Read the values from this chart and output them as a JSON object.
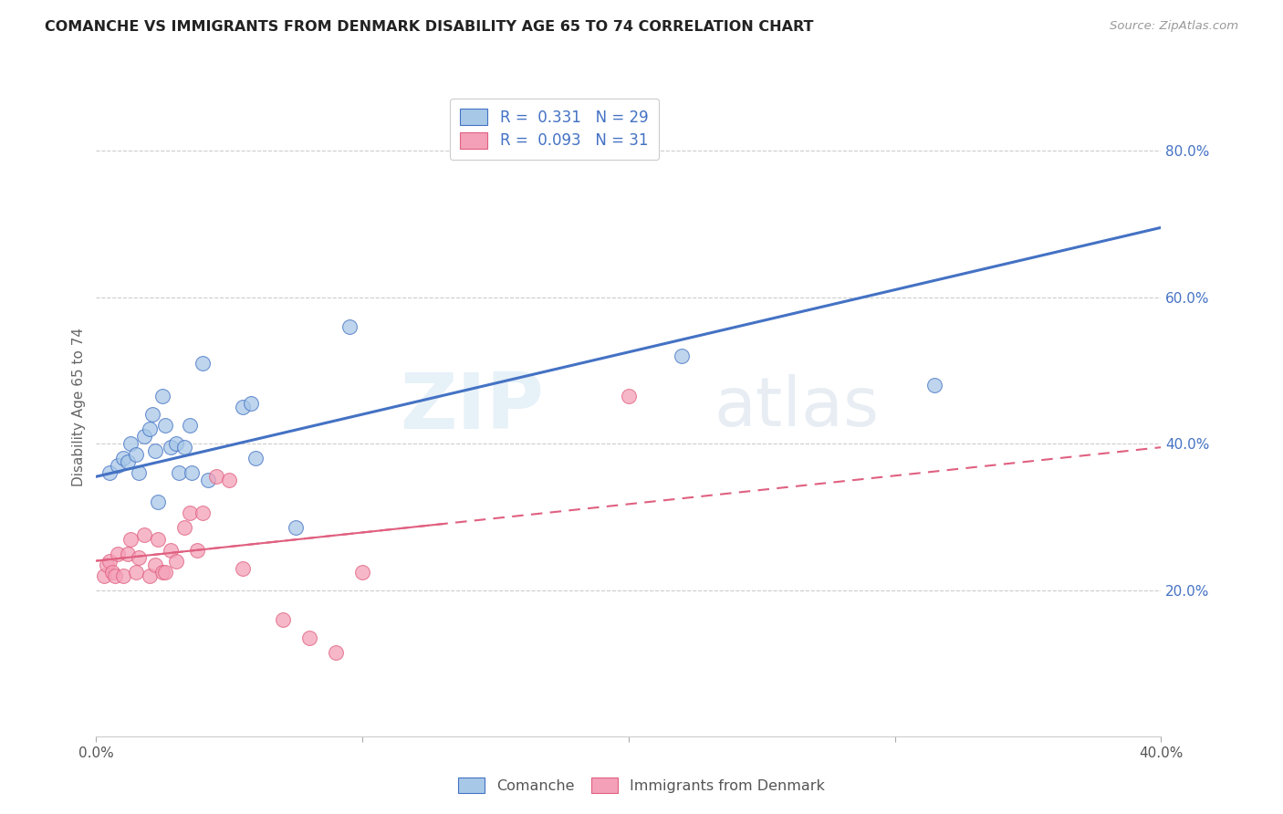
{
  "title": "COMANCHE VS IMMIGRANTS FROM DENMARK DISABILITY AGE 65 TO 74 CORRELATION CHART",
  "source": "Source: ZipAtlas.com",
  "ylabel_label": "Disability Age 65 to 74",
  "legend_label1": "Comanche",
  "legend_label2": "Immigrants from Denmark",
  "R1": 0.331,
  "N1": 29,
  "R2": 0.093,
  "N2": 31,
  "xlim": [
    0.0,
    0.4
  ],
  "ylim": [
    0.0,
    0.9
  ],
  "yticks": [
    0.2,
    0.4,
    0.6,
    0.8
  ],
  "ytick_labels": [
    "20.0%",
    "40.0%",
    "60.0%",
    "80.0%"
  ],
  "color_blue": "#a8c8e8",
  "color_pink": "#f4a0b8",
  "line_blue": "#4472c4",
  "line_pink": "#e06080",
  "watermark_zip": "ZIP",
  "watermark_atlas": "atlas",
  "comanche_x": [
    0.005,
    0.008,
    0.01,
    0.012,
    0.013,
    0.015,
    0.016,
    0.018,
    0.02,
    0.021,
    0.022,
    0.023,
    0.025,
    0.026,
    0.028,
    0.03,
    0.031,
    0.033,
    0.035,
    0.036,
    0.04,
    0.042,
    0.055,
    0.058,
    0.06,
    0.075,
    0.095,
    0.22,
    0.315
  ],
  "comanche_y": [
    0.36,
    0.37,
    0.38,
    0.375,
    0.4,
    0.385,
    0.36,
    0.41,
    0.42,
    0.44,
    0.39,
    0.32,
    0.465,
    0.425,
    0.395,
    0.4,
    0.36,
    0.395,
    0.425,
    0.36,
    0.51,
    0.35,
    0.45,
    0.455,
    0.38,
    0.285,
    0.56,
    0.52,
    0.48
  ],
  "denmark_x": [
    0.003,
    0.004,
    0.005,
    0.006,
    0.007,
    0.008,
    0.01,
    0.012,
    0.013,
    0.015,
    0.016,
    0.018,
    0.02,
    0.022,
    0.023,
    0.025,
    0.026,
    0.028,
    0.03,
    0.033,
    0.035,
    0.038,
    0.04,
    0.045,
    0.05,
    0.055,
    0.07,
    0.08,
    0.09,
    0.1,
    0.2
  ],
  "denmark_y": [
    0.22,
    0.235,
    0.24,
    0.225,
    0.22,
    0.25,
    0.22,
    0.25,
    0.27,
    0.225,
    0.245,
    0.275,
    0.22,
    0.235,
    0.27,
    0.225,
    0.225,
    0.255,
    0.24,
    0.285,
    0.305,
    0.255,
    0.305,
    0.355,
    0.35,
    0.23,
    0.16,
    0.135,
    0.115,
    0.225,
    0.465
  ],
  "blue_line_x0": 0.0,
  "blue_line_y0": 0.355,
  "blue_line_x1": 0.4,
  "blue_line_y1": 0.695,
  "pink_line_x0": 0.0,
  "pink_line_y0": 0.24,
  "pink_line_x1": 0.4,
  "pink_line_y1": 0.395
}
